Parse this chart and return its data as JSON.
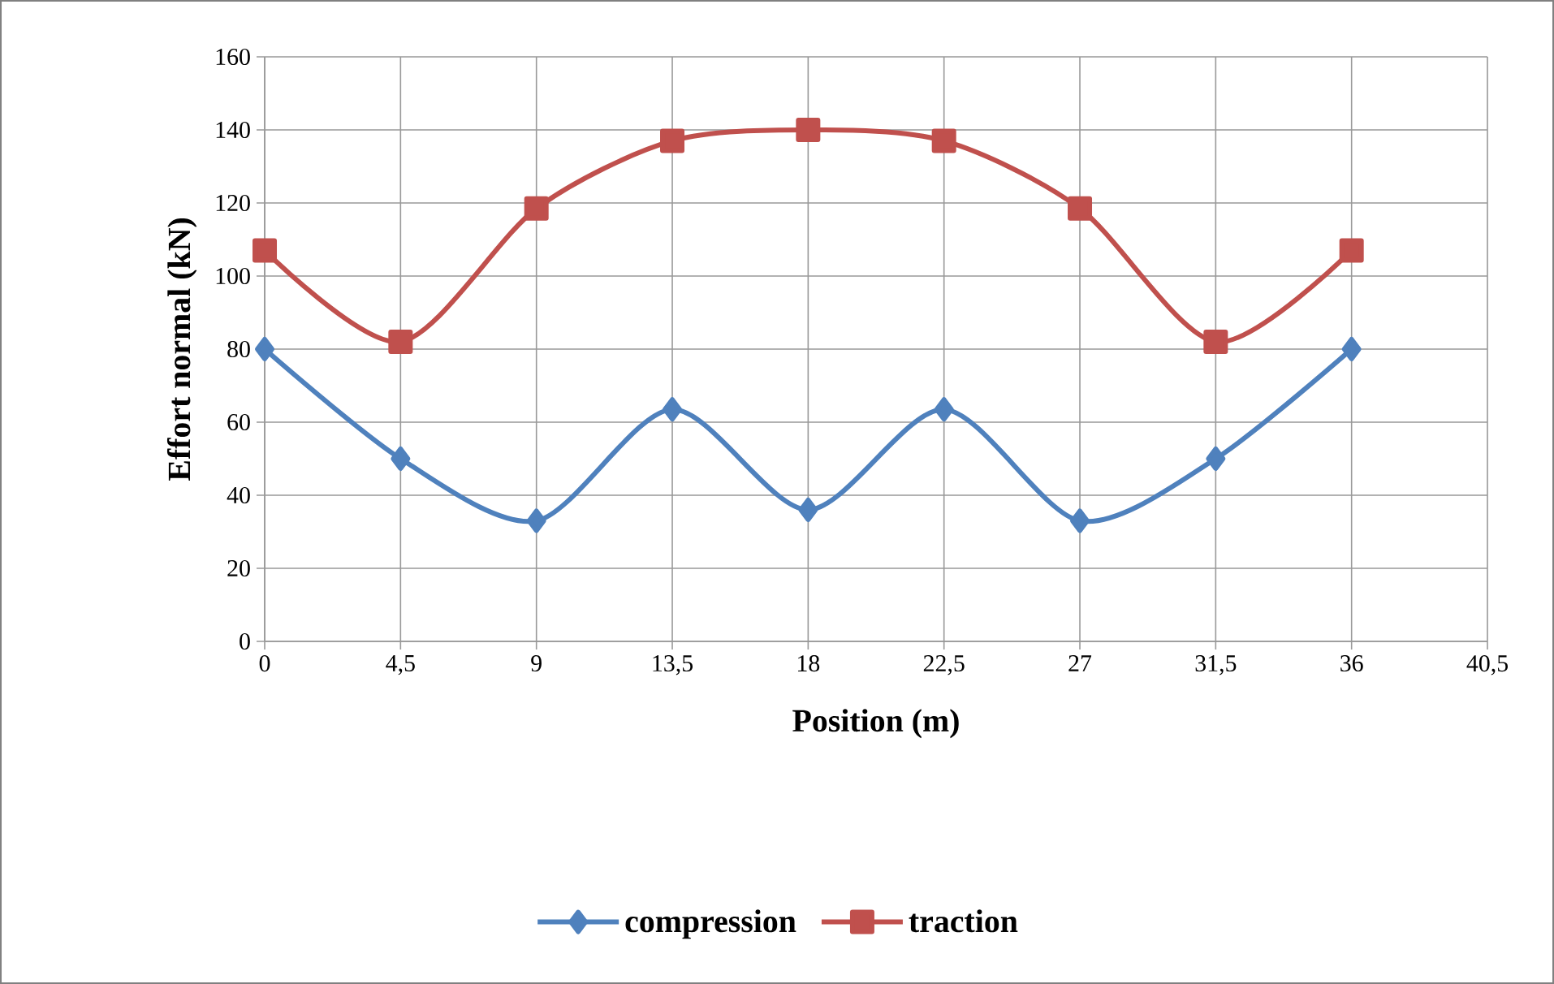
{
  "chart_data": {
    "type": "line",
    "xlabel": "Position (m)",
    "ylabel": "Effort normal (kN)",
    "x": [
      0,
      4.5,
      9,
      13.5,
      18,
      22.5,
      27,
      31.5,
      36
    ],
    "series": [
      {
        "name": "compression",
        "color": "#4f81bd",
        "marker": "diamond",
        "values": [
          80,
          50,
          33,
          63.5,
          36,
          63.5,
          33,
          50,
          80
        ]
      },
      {
        "name": "traction",
        "color": "#c0504d",
        "marker": "square",
        "values": [
          107,
          82,
          118.5,
          137,
          140,
          137,
          118.5,
          82,
          107
        ]
      }
    ],
    "xlim": [
      0,
      40.5
    ],
    "xticks": [
      0,
      {
        "value": 4.5,
        "label": "4,5"
      },
      9,
      {
        "value": 13.5,
        "label": "13,5"
      },
      18,
      {
        "value": 22.5,
        "label": "22,5"
      },
      27,
      {
        "value": 31.5,
        "label": "31,5"
      },
      36,
      {
        "value": 40.5,
        "label": "40,5"
      }
    ],
    "ylim": [
      0,
      160
    ],
    "yticks": [
      0,
      20,
      40,
      60,
      80,
      100,
      120,
      140,
      160
    ],
    "grid": true,
    "legend": "bottom",
    "line_style": "solid"
  }
}
